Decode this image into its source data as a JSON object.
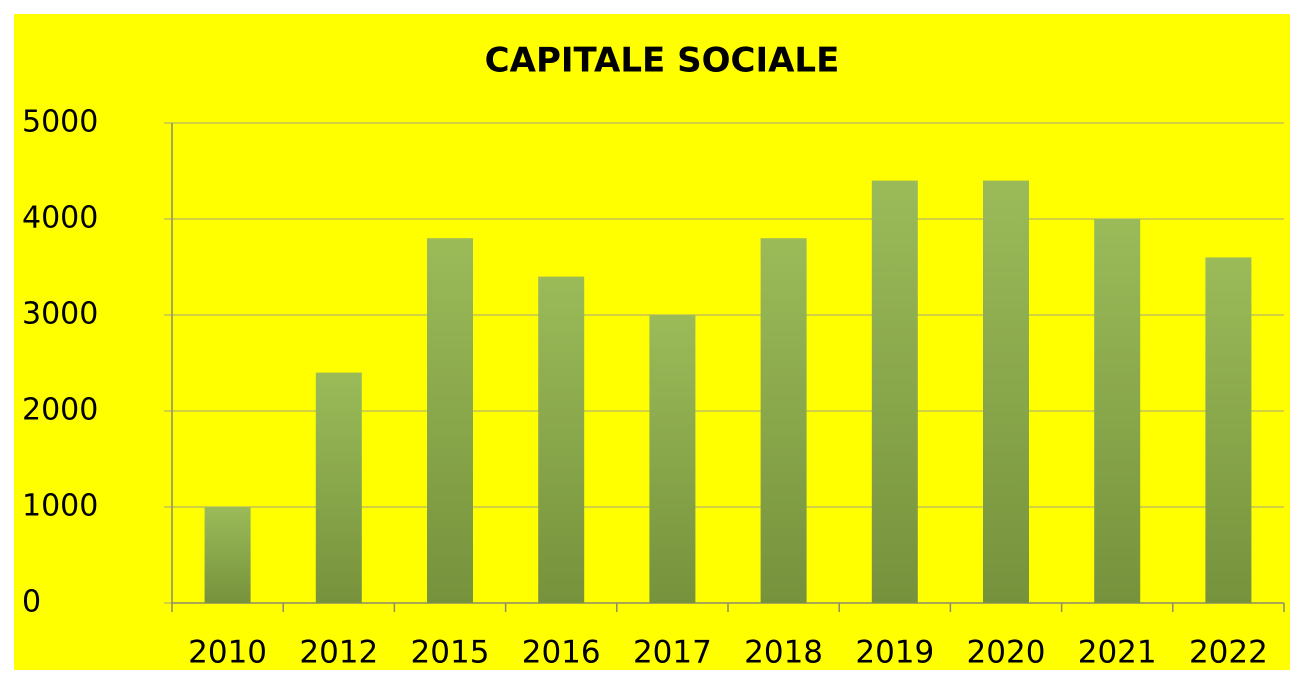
{
  "chart_data": {
    "type": "bar",
    "title": "CAPITALE SOCIALE",
    "categories": [
      "2010",
      "2012",
      "2015",
      "2016",
      "2017",
      "2018",
      "2019",
      "2020",
      "2021",
      "2022"
    ],
    "values": [
      1000,
      2400,
      3800,
      3400,
      3000,
      3800,
      4400,
      4400,
      4000,
      3600
    ],
    "color": "#9bbb59",
    "ylim": [
      0,
      5000
    ],
    "yticks": [
      0,
      1000,
      2000,
      3000,
      4000,
      5000
    ],
    "grid": true
  }
}
